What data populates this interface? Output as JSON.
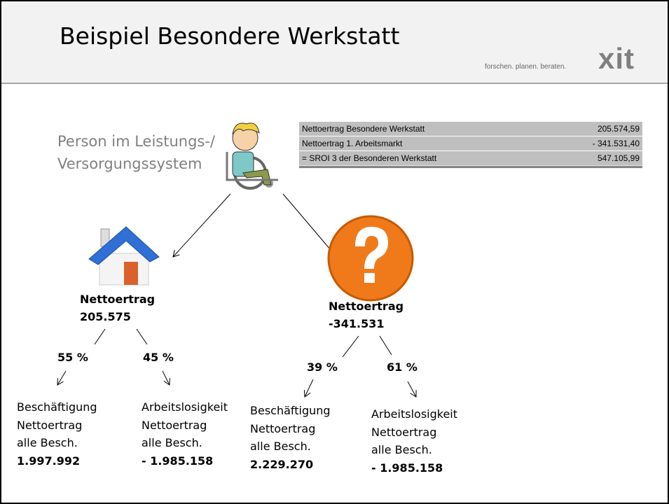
{
  "header": {
    "title": "Beispiel Besondere Werkstatt",
    "tagline": "forschen. planen. beraten.",
    "logo": "xit"
  },
  "person_label": [
    "Person im Leistungs-/",
    "Versorgungssystem"
  ],
  "table": {
    "rows": [
      [
        "Nettoertrag  Besondere Werkstatt",
        "205.574,59"
      ],
      [
        "Nettoertrag 1. Arbeitsmarkt",
        "- 341.531,40"
      ],
      [
        "= SROI 3 der Besonderen Werkstatt",
        "547.105,99"
      ]
    ]
  },
  "branches": [
    {
      "label": "Nettoertrag",
      "value": "205.575",
      "children": [
        {
          "percent": "55 %",
          "lines": [
            "Beschäftigung",
            "Nettoertrag",
            "alle Besch."
          ],
          "value": "1.997.992"
        },
        {
          "percent": "45 %",
          "lines": [
            "Arbeitslosigkeit",
            "Nettoertrag",
            "alle Besch."
          ],
          "value": "- 1.985.158"
        }
      ]
    },
    {
      "label": "Nettoertrag",
      "value": "-341.531",
      "children": [
        {
          "percent": "39 %",
          "lines": [
            "Beschäftigung",
            "Nettoertrag",
            "alle Besch."
          ],
          "value": "2.229.270"
        },
        {
          "percent": "61 %",
          "lines": [
            "Arbeitslosigkeit",
            "Nettoertrag",
            "alle Besch."
          ],
          "value": "- 1.985.158"
        }
      ]
    }
  ]
}
